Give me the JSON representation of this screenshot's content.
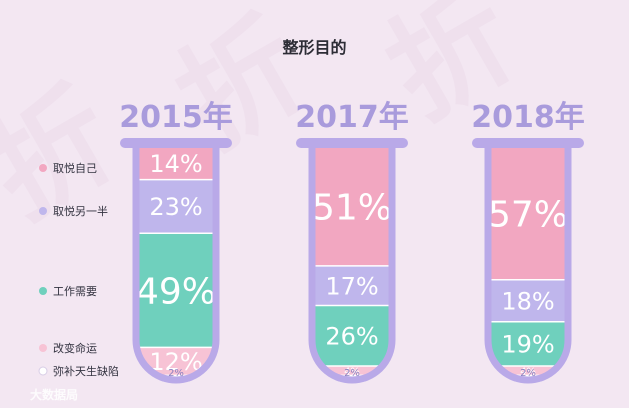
{
  "chart_data": {
    "type": "bar",
    "stacked": true,
    "title": "整形目的",
    "categories": [
      "2015年",
      "2017年",
      "2018年"
    ],
    "series": [
      {
        "name": "取悦自己",
        "color": "#f2a7c1",
        "values": [
          14,
          51,
          57
        ]
      },
      {
        "name": "取悦另一半",
        "color": "#bfb6ec",
        "values": [
          23,
          17,
          18
        ]
      },
      {
        "name": "工作需要",
        "color": "#6fd0bd",
        "values": [
          49,
          26,
          19
        ]
      },
      {
        "name": "改变命运",
        "color": "#f7c3d5",
        "values": [
          12,
          4,
          4
        ]
      },
      {
        "name": "弥补天生缺陷",
        "color": "#ffffff",
        "values": [
          2,
          2,
          2
        ]
      }
    ],
    "value_suffix": "%",
    "legend_position": "left"
  },
  "watermark": "大数据局"
}
